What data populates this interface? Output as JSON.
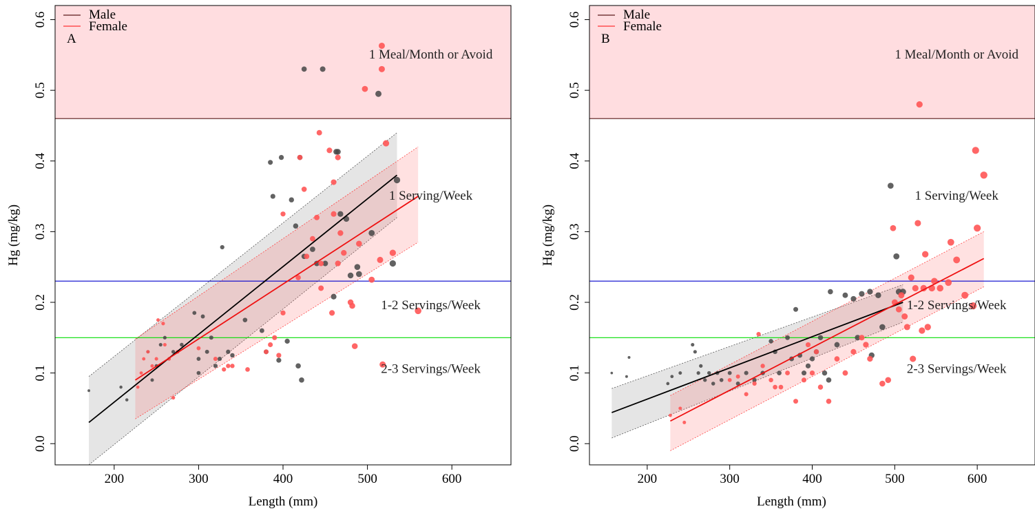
{
  "chart_data": [
    {
      "type": "scatter",
      "panel_label": "A",
      "xlabel": "Length (mm)",
      "ylabel": "Hg (mg/kg)",
      "xlim": [
        130,
        670
      ],
      "ylim": [
        -0.03,
        0.62
      ],
      "xticks": [
        200,
        300,
        400,
        500,
        600
      ],
      "yticks": [
        0.0,
        0.1,
        0.2,
        0.3,
        0.4,
        0.5,
        0.6
      ],
      "legend": {
        "position": "top-left",
        "entries": [
          "Male",
          "Female"
        ]
      },
      "thresholds": [
        {
          "value": 0.46,
          "color": "#5a1a1a",
          "label": "1 Meal/Month or Avoid",
          "shade_above": true,
          "label_y": 0.545
        },
        {
          "value": 0.23,
          "color": "#0000cc",
          "label": "1 Serving/Week",
          "label_y": 0.345
        },
        {
          "value": 0.15,
          "color": "#00dd00",
          "label": "1-2 Servings/Week",
          "label_y": 0.19
        },
        {
          "value": null,
          "label": "2-3 Servings/Week",
          "label_y": 0.1
        }
      ],
      "band_label_x": 575,
      "series": [
        {
          "name": "Male",
          "color": "#000000",
          "fit": {
            "x": [
              170,
              535
            ],
            "y": [
              0.03,
              0.38
            ]
          },
          "ci": {
            "x": [
              170,
              535
            ],
            "upper": [
              0.095,
              0.44
            ],
            "lower": [
              -0.03,
              0.32
            ]
          },
          "points": [
            [
              170,
              0.075
            ],
            [
              208,
              0.08
            ],
            [
              215,
              0.062
            ],
            [
              240,
              0.13
            ],
            [
              245,
              0.09
            ],
            [
              250,
              0.11
            ],
            [
              255,
              0.14
            ],
            [
              260,
              0.15
            ],
            [
              270,
              0.13
            ],
            [
              280,
              0.14
            ],
            [
              295,
              0.185
            ],
            [
              300,
              0.1
            ],
            [
              300,
              0.12
            ],
            [
              305,
              0.18
            ],
            [
              310,
              0.13
            ],
            [
              315,
              0.15
            ],
            [
              320,
              0.11
            ],
            [
              325,
              0.12
            ],
            [
              328,
              0.278
            ],
            [
              335,
              0.13
            ],
            [
              340,
              0.125
            ],
            [
              355,
              0.175
            ],
            [
              375,
              0.16
            ],
            [
              380,
              0.13
            ],
            [
              385,
              0.398
            ],
            [
              388,
              0.35
            ],
            [
              395,
              0.118
            ],
            [
              398,
              0.405
            ],
            [
              405,
              0.145
            ],
            [
              410,
              0.345
            ],
            [
              415,
              0.308
            ],
            [
              418,
              0.11
            ],
            [
              420,
              0.405
            ],
            [
              422,
              0.09
            ],
            [
              425,
              0.53
            ],
            [
              425,
              0.265
            ],
            [
              435,
              0.275
            ],
            [
              440,
              0.255
            ],
            [
              447,
              0.53
            ],
            [
              450,
              0.255
            ],
            [
              460,
              0.208
            ],
            [
              463,
              0.413
            ],
            [
              465,
              0.413
            ],
            [
              468,
              0.325
            ],
            [
              475,
              0.318
            ],
            [
              480,
              0.238
            ],
            [
              488,
              0.25
            ],
            [
              490,
              0.24
            ],
            [
              505,
              0.298
            ],
            [
              513,
              0.495
            ],
            [
              530,
              0.255
            ],
            [
              535,
              0.373
            ]
          ]
        },
        {
          "name": "Female",
          "color": "#ff5555",
          "fit": {
            "x": [
              225,
              560
            ],
            "y": [
              0.09,
              0.35
            ]
          },
          "ci": {
            "x": [
              225,
              560
            ],
            "upper": [
              0.148,
              0.42
            ],
            "lower": [
              0.035,
              0.285
            ]
          },
          "points": [
            [
              228,
              0.08
            ],
            [
              232,
              0.1
            ],
            [
              235,
              0.12
            ],
            [
              240,
              0.13
            ],
            [
              245,
              0.11
            ],
            [
              250,
              0.12
            ],
            [
              252,
              0.175
            ],
            [
              258,
              0.17
            ],
            [
              260,
              0.14
            ],
            [
              265,
              0.12
            ],
            [
              270,
              0.065
            ],
            [
              275,
              0.13
            ],
            [
              300,
              0.135
            ],
            [
              320,
              0.12
            ],
            [
              330,
              0.105
            ],
            [
              335,
              0.11
            ],
            [
              340,
              0.11
            ],
            [
              358,
              0.105
            ],
            [
              380,
              0.13
            ],
            [
              385,
              0.14
            ],
            [
              390,
              0.15
            ],
            [
              395,
              0.125
            ],
            [
              400,
              0.325
            ],
            [
              400,
              0.185
            ],
            [
              418,
              0.235
            ],
            [
              420,
              0.405
            ],
            [
              425,
              0.36
            ],
            [
              428,
              0.265
            ],
            [
              435,
              0.29
            ],
            [
              440,
              0.32
            ],
            [
              443,
              0.44
            ],
            [
              445,
              0.255
            ],
            [
              445,
              0.22
            ],
            [
              455,
              0.415
            ],
            [
              458,
              0.185
            ],
            [
              460,
              0.37
            ],
            [
              460,
              0.325
            ],
            [
              465,
              0.405
            ],
            [
              465,
              0.255
            ],
            [
              468,
              0.298
            ],
            [
              472,
              0.27
            ],
            [
              480,
              0.2
            ],
            [
              482,
              0.195
            ],
            [
              485,
              0.138
            ],
            [
              490,
              0.283
            ],
            [
              497,
              0.502
            ],
            [
              505,
              0.232
            ],
            [
              515,
              0.26
            ],
            [
              517,
              0.53
            ],
            [
              517,
              0.563
            ],
            [
              518,
              0.112
            ],
            [
              522,
              0.425
            ],
            [
              530,
              0.27
            ],
            [
              560,
              0.188
            ]
          ]
        }
      ]
    },
    {
      "type": "scatter",
      "panel_label": "B",
      "xlabel": "Length (mm)",
      "ylabel": "Hg (mg/kg)",
      "xlim": [
        130,
        670
      ],
      "ylim": [
        -0.03,
        0.62
      ],
      "xticks": [
        200,
        300,
        400,
        500,
        600
      ],
      "yticks": [
        0.0,
        0.1,
        0.2,
        0.3,
        0.4,
        0.5,
        0.6
      ],
      "legend": {
        "position": "top-left",
        "entries": [
          "Male",
          "Female"
        ]
      },
      "thresholds": [
        {
          "value": 0.46,
          "color": "#5a1a1a",
          "label": "1 Meal/Month or Avoid",
          "shade_above": true,
          "label_y": 0.545
        },
        {
          "value": 0.23,
          "color": "#0000cc",
          "label": "1 Serving/Week",
          "label_y": 0.345
        },
        {
          "value": 0.15,
          "color": "#00dd00",
          "label": "1-2 Servings/Week",
          "label_y": 0.19
        },
        {
          "value": null,
          "label": "2-3 Servings/Week",
          "label_y": 0.1
        }
      ],
      "band_label_x": 575,
      "series": [
        {
          "name": "Male",
          "color": "#000000",
          "fit": {
            "x": [
              157,
              510
            ],
            "y": [
              0.044,
              0.2
            ]
          },
          "ci": {
            "x": [
              157,
              510
            ],
            "upper": [
              0.078,
              0.225
            ],
            "lower": [
              0.008,
              0.172
            ]
          },
          "points": [
            [
              157,
              0.1
            ],
            [
              175,
              0.095
            ],
            [
              178,
              0.122
            ],
            [
              225,
              0.085
            ],
            [
              230,
              0.095
            ],
            [
              240,
              0.1
            ],
            [
              255,
              0.14
            ],
            [
              258,
              0.13
            ],
            [
              262,
              0.1
            ],
            [
              265,
              0.11
            ],
            [
              270,
              0.09
            ],
            [
              275,
              0.1
            ],
            [
              280,
              0.085
            ],
            [
              285,
              0.1
            ],
            [
              290,
              0.09
            ],
            [
              300,
              0.1
            ],
            [
              310,
              0.085
            ],
            [
              320,
              0.1
            ],
            [
              330,
              0.09
            ],
            [
              340,
              0.1
            ],
            [
              350,
              0.145
            ],
            [
              355,
              0.13
            ],
            [
              360,
              0.1
            ],
            [
              370,
              0.15
            ],
            [
              375,
              0.12
            ],
            [
              380,
              0.19
            ],
            [
              385,
              0.125
            ],
            [
              390,
              0.1
            ],
            [
              395,
              0.11
            ],
            [
              400,
              0.12
            ],
            [
              405,
              0.13
            ],
            [
              410,
              0.15
            ],
            [
              415,
              0.1
            ],
            [
              420,
              0.09
            ],
            [
              422,
              0.215
            ],
            [
              430,
              0.14
            ],
            [
              440,
              0.21
            ],
            [
              450,
              0.205
            ],
            [
              455,
              0.15
            ],
            [
              460,
              0.212
            ],
            [
              470,
              0.215
            ],
            [
              472,
              0.125
            ],
            [
              480,
              0.21
            ],
            [
              485,
              0.165
            ],
            [
              495,
              0.365
            ],
            [
              502,
              0.265
            ],
            [
              505,
              0.215
            ],
            [
              510,
              0.215
            ]
          ]
        },
        {
          "name": "Female",
          "color": "#ff5555",
          "fit": {
            "x": [
              228,
              608
            ],
            "y": [
              0.032,
              0.262
            ]
          },
          "ci": {
            "x": [
              228,
              608
            ],
            "upper": [
              0.068,
              0.3
            ],
            "lower": [
              -0.01,
              0.222
            ]
          },
          "points": [
            [
              228,
              0.04
            ],
            [
              240,
              0.05
            ],
            [
              245,
              0.03
            ],
            [
              300,
              0.09
            ],
            [
              310,
              0.095
            ],
            [
              320,
              0.07
            ],
            [
              330,
              0.085
            ],
            [
              335,
              0.155
            ],
            [
              340,
              0.11
            ],
            [
              350,
              0.09
            ],
            [
              355,
              0.08
            ],
            [
              362,
              0.08
            ],
            [
              370,
              0.1
            ],
            [
              380,
              0.06
            ],
            [
              390,
              0.09
            ],
            [
              395,
              0.14
            ],
            [
              400,
              0.1
            ],
            [
              405,
              0.13
            ],
            [
              410,
              0.08
            ],
            [
              420,
              0.06
            ],
            [
              430,
              0.12
            ],
            [
              440,
              0.1
            ],
            [
              450,
              0.13
            ],
            [
              460,
              0.15
            ],
            [
              465,
              0.14
            ],
            [
              470,
              0.12
            ],
            [
              485,
              0.085
            ],
            [
              492,
              0.09
            ],
            [
              498,
              0.305
            ],
            [
              500,
              0.2
            ],
            [
              505,
              0.19
            ],
            [
              508,
              0.21
            ],
            [
              512,
              0.18
            ],
            [
              515,
              0.165
            ],
            [
              520,
              0.235
            ],
            [
              522,
              0.12
            ],
            [
              525,
              0.22
            ],
            [
              528,
              0.312
            ],
            [
              530,
              0.48
            ],
            [
              533,
              0.16
            ],
            [
              535,
              0.22
            ],
            [
              537,
              0.268
            ],
            [
              540,
              0.165
            ],
            [
              545,
              0.22
            ],
            [
              548,
              0.23
            ],
            [
              555,
              0.22
            ],
            [
              565,
              0.228
            ],
            [
              568,
              0.285
            ],
            [
              575,
              0.26
            ],
            [
              585,
              0.21
            ],
            [
              595,
              0.195
            ],
            [
              598,
              0.415
            ],
            [
              600,
              0.305
            ],
            [
              608,
              0.38
            ]
          ]
        }
      ]
    }
  ]
}
